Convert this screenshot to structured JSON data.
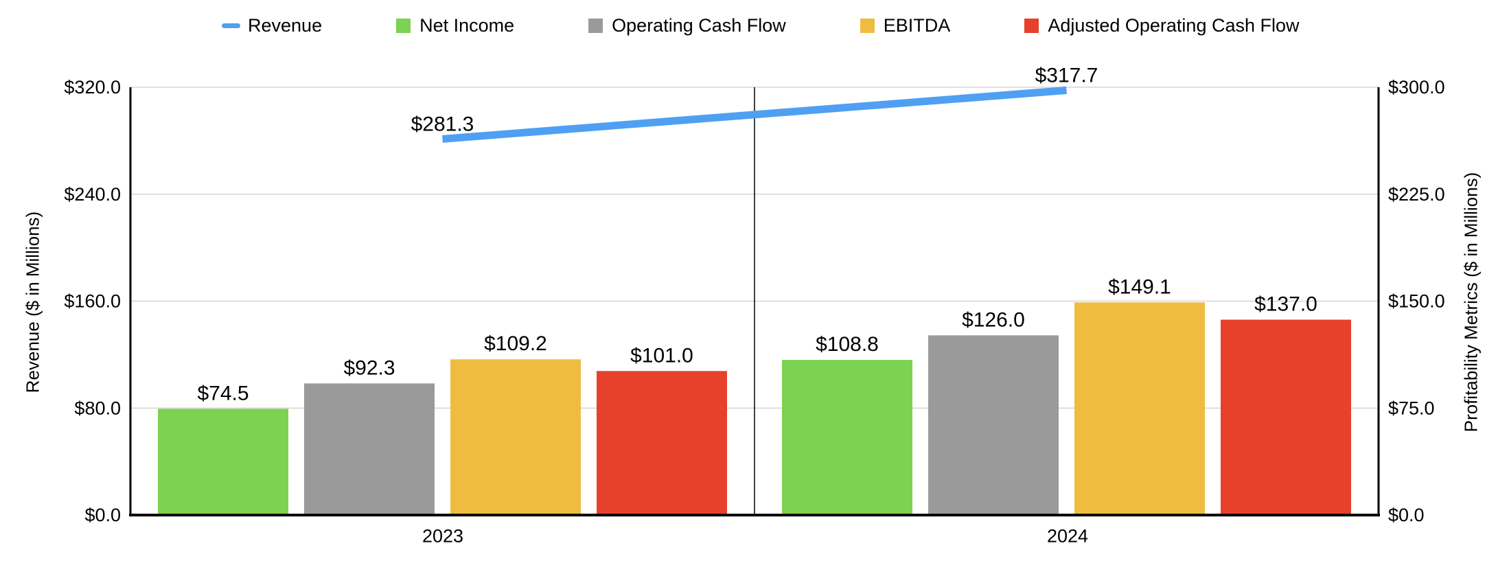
{
  "chart_data": {
    "type": "combo-bar-line",
    "categories": [
      "2023",
      "2024"
    ],
    "bar_series": [
      {
        "name": "Net Income",
        "color": "#7CD251",
        "values": [
          74.5,
          108.8
        ]
      },
      {
        "name": "Operating Cash Flow",
        "color": "#9A9A9A",
        "values": [
          92.3,
          126.0
        ]
      },
      {
        "name": "EBITDA",
        "color": "#EEBD40",
        "values": [
          109.2,
          149.1
        ]
      },
      {
        "name": "Adjusted Operating Cash Flow",
        "color": "#E7402B",
        "values": [
          101.0,
          137.0
        ]
      }
    ],
    "line_series": {
      "name": "Revenue",
      "color": "#4FA0F2",
      "axis": "left",
      "values": [
        281.3,
        317.7
      ]
    },
    "left_axis": {
      "title": "Revenue ($ in Millions)",
      "min": 0,
      "max": 320,
      "ticks": [
        0,
        80,
        160,
        240,
        320
      ],
      "tick_labels": [
        "$0.0",
        "$80.0",
        "$160.0",
        "$240.0",
        "$320.0"
      ]
    },
    "right_axis": {
      "title": "Profitability Metrics ($ in Millions)",
      "min": 0,
      "max": 300,
      "ticks": [
        0,
        75,
        150,
        225,
        300
      ],
      "tick_labels": [
        "$0.0",
        "$75.0",
        "$150.0",
        "$225.0",
        "$300.0"
      ]
    },
    "data_labels": {
      "bars": [
        [
          "$74.5",
          "$92.3",
          "$109.2",
          "$101.0"
        ],
        [
          "$108.8",
          "$126.0",
          "$149.1",
          "$137.0"
        ]
      ],
      "line": [
        "$281.3",
        "$317.7"
      ]
    },
    "legend_position": "top",
    "grid": true,
    "legend": [
      {
        "label": "Revenue",
        "color": "#4FA0F2",
        "marker": "line"
      },
      {
        "label": "Net Income",
        "color": "#7CD251",
        "marker": "square"
      },
      {
        "label": "Operating Cash Flow",
        "color": "#9A9A9A",
        "marker": "square"
      },
      {
        "label": "EBITDA",
        "color": "#EEBD40",
        "marker": "square"
      },
      {
        "label": "Adjusted Operating Cash Flow",
        "color": "#E7402B",
        "marker": "square"
      }
    ]
  },
  "colors": {
    "grid": "#D5D5D5",
    "axis": "#000000",
    "text": "#000000",
    "background": "#FFFFFF"
  }
}
